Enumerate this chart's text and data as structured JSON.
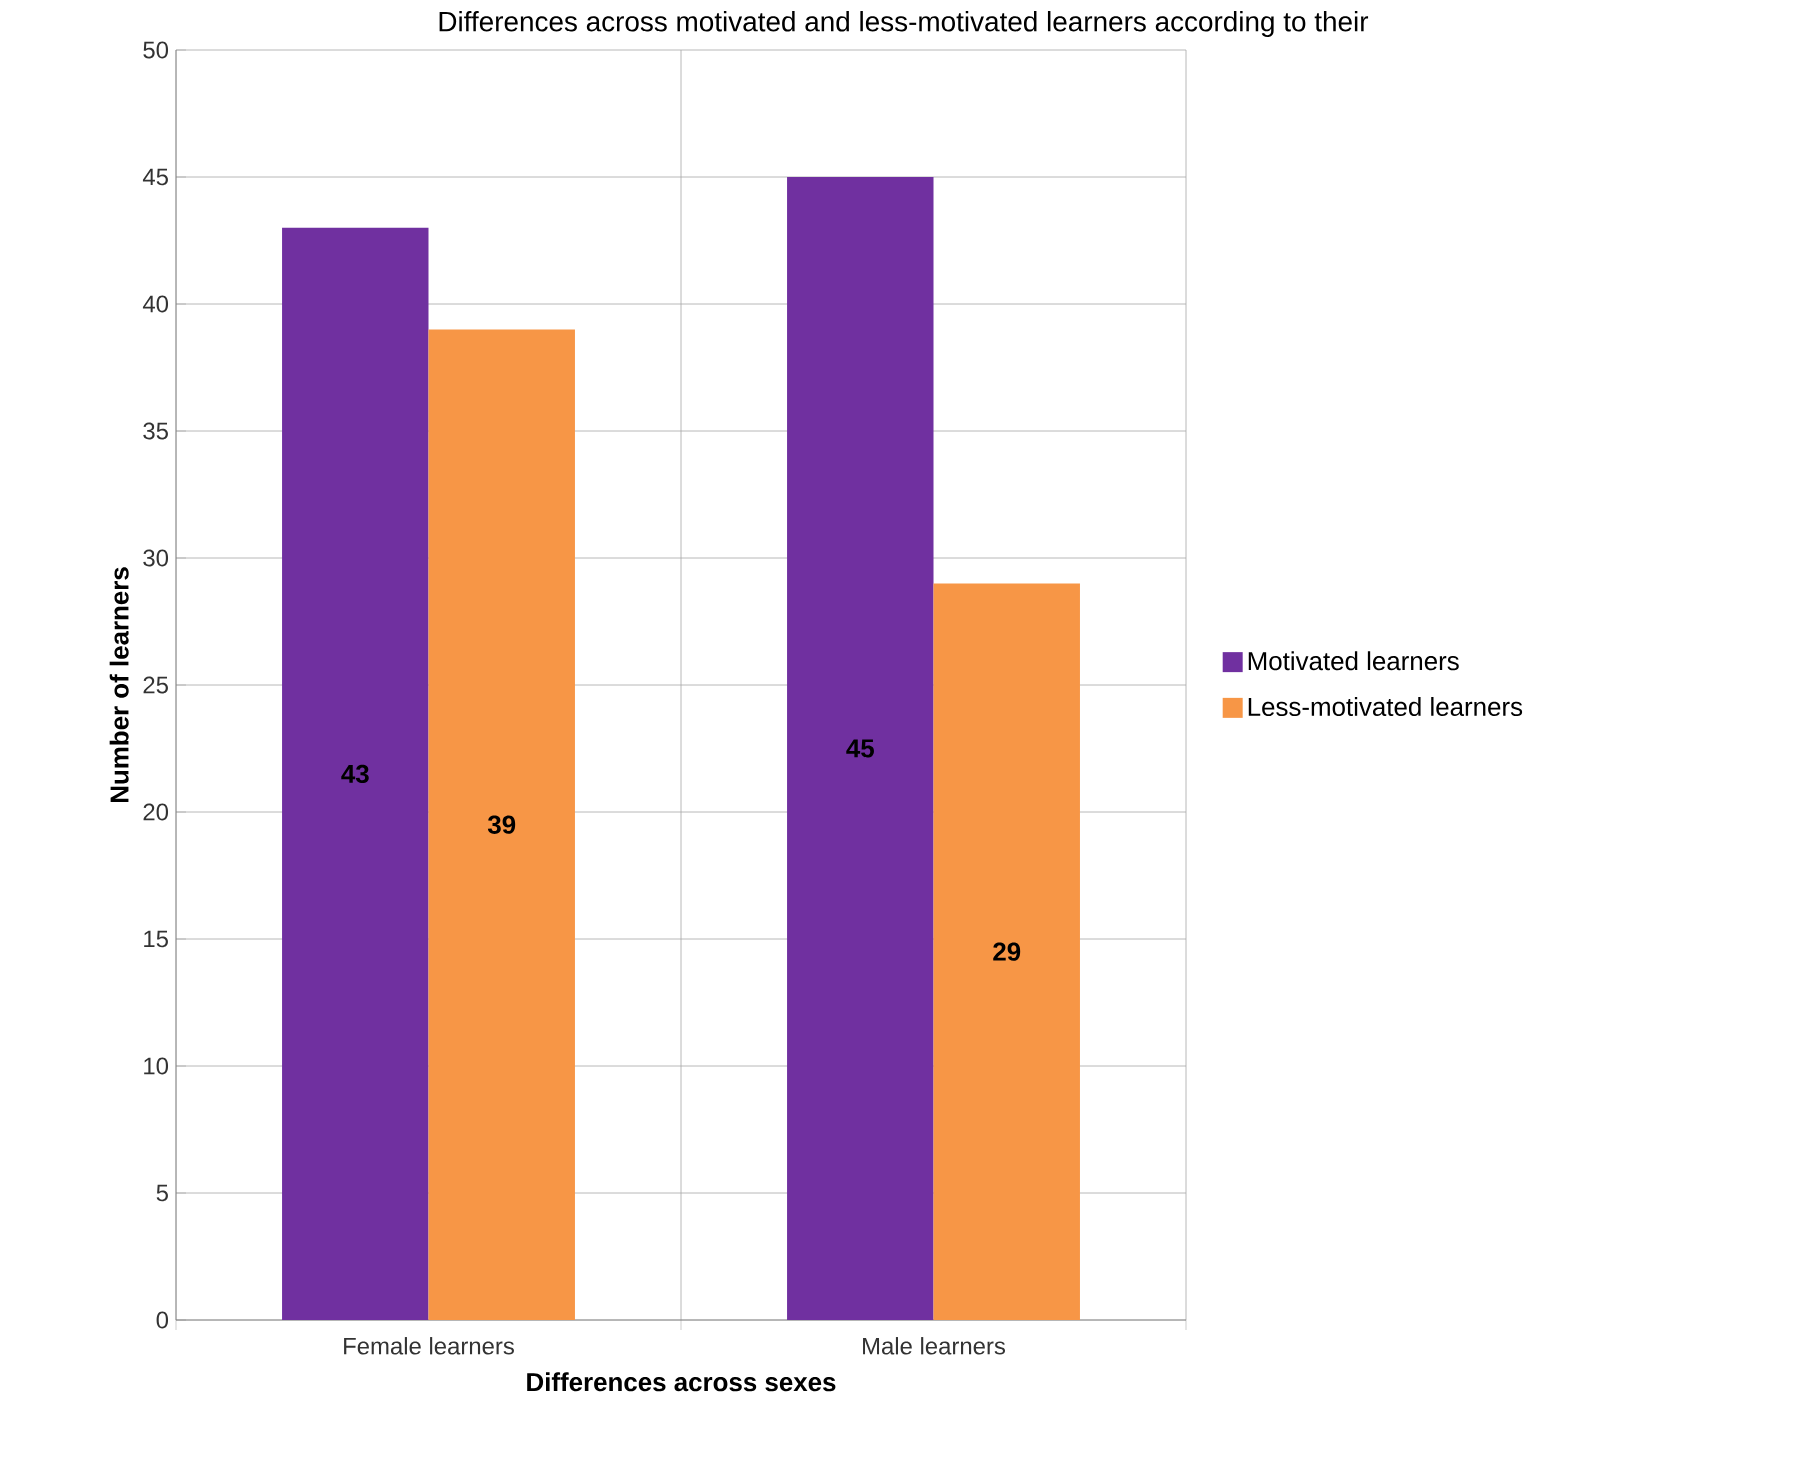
{
  "chart_data": {
    "type": "bar",
    "title": "Differences across motivated and less-motivated learners according to their",
    "xlabel": "Differences across sexes",
    "ylabel": "Number of learners",
    "categories": [
      "Female learners",
      "Male learners"
    ],
    "series": [
      {
        "name": "Motivated learners",
        "color": "#7030a0",
        "values": [
          43,
          45
        ]
      },
      {
        "name": "Less-motivated learners",
        "color": "#f79646",
        "values": [
          39,
          29
        ]
      }
    ],
    "ylim": [
      0,
      50
    ],
    "yticks": [
      0,
      5,
      10,
      15,
      20,
      25,
      30,
      35,
      40,
      45,
      50
    ],
    "grid": true,
    "legend": "right",
    "data_labels": true
  }
}
